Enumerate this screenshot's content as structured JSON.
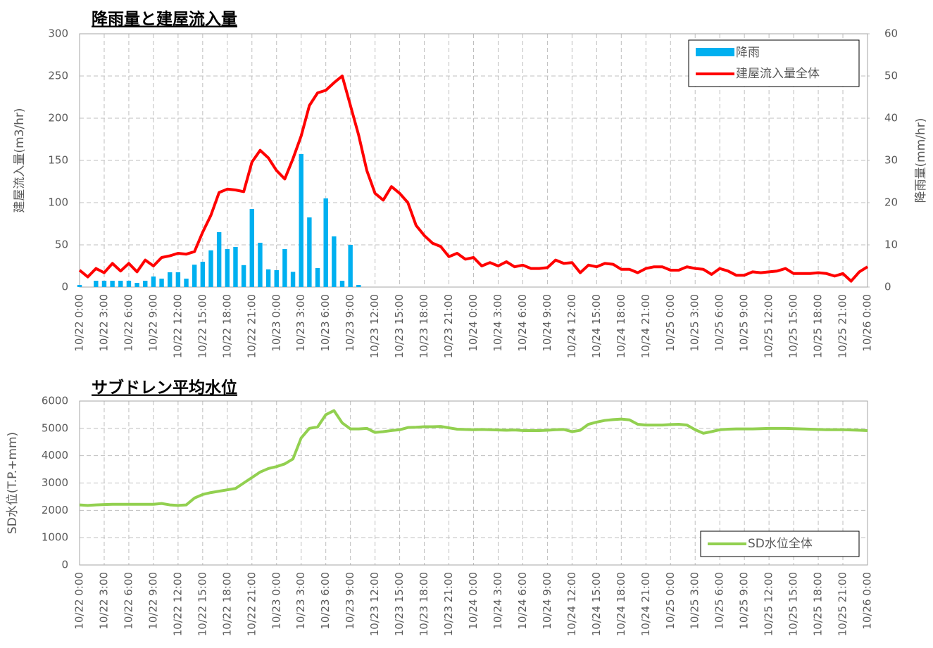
{
  "chart_data": [
    {
      "type": "combo",
      "title": "降雨量と建屋流入量",
      "ylabel": "建屋流入量(m3/hr)",
      "y2label": "降雨量(mm/hr)",
      "categories": [
        "10/22 0:00",
        null,
        null,
        "10/22 3:00",
        null,
        null,
        "10/22 6:00",
        null,
        null,
        "10/22 9:00",
        null,
        null,
        "10/22 12:00",
        null,
        null,
        "10/22 15:00",
        null,
        null,
        "10/22 18:00",
        null,
        null,
        "10/22 21:00",
        null,
        null,
        "10/23 0:00",
        null,
        null,
        "10/23 3:00",
        null,
        null,
        "10/23 6:00",
        null,
        null,
        "10/23 9:00",
        null,
        null,
        "10/23 12:00",
        null,
        null,
        "10/23 15:00",
        null,
        null,
        "10/23 18:00",
        null,
        null,
        "10/23 21:00",
        null,
        null,
        "10/24 0:00",
        null,
        null,
        "10/24 3:00",
        null,
        null,
        "10/24 6:00",
        null,
        null,
        "10/24 9:00",
        null,
        null,
        "10/24 12:00",
        null,
        null,
        "10/24 15:00",
        null,
        null,
        "10/24 18:00",
        null,
        null,
        "10/24 21:00",
        null,
        null,
        "10/25 0:00",
        null,
        null,
        "10/25 3:00",
        null,
        null,
        "10/25 6:00",
        null,
        null,
        "10/25 9:00",
        null,
        null,
        "10/25 12:00",
        null,
        null,
        "10/25 15:00",
        null,
        null,
        "10/25 18:00",
        null,
        null,
        "10/25 21:00",
        null,
        null,
        "10/26 0:00"
      ],
      "series": [
        {
          "name": "降雨",
          "type": "bar",
          "axis": "y2",
          "color": "#00b0f0",
          "values": [
            0.5,
            0,
            1.5,
            1.5,
            1.5,
            1.5,
            1.5,
            1,
            1.5,
            2.5,
            2,
            3.5,
            3.5,
            2,
            5.3,
            6,
            8.7,
            13,
            9,
            9.5,
            5.2,
            18.5,
            10.5,
            4.2,
            4,
            9,
            3.6,
            31.5,
            16.5,
            4.5,
            21,
            12,
            1.5,
            10,
            0.5,
            0,
            0,
            0,
            0,
            0,
            0,
            0,
            0,
            0,
            0,
            0,
            0,
            0,
            0,
            0,
            0,
            0,
            0,
            0,
            0,
            0,
            0,
            0,
            0,
            0,
            0,
            0,
            0,
            0,
            0,
            0,
            0,
            0,
            0,
            0,
            0,
            0,
            0,
            0,
            0,
            0,
            0,
            0,
            0,
            0,
            0,
            0,
            0,
            0,
            0,
            0,
            0,
            0,
            0,
            0,
            0,
            0,
            0,
            0,
            0,
            0,
            0
          ]
        },
        {
          "name": "建屋流入量全体",
          "type": "line",
          "color": "#ff0000",
          "values": [
            20,
            12,
            22,
            17,
            28,
            19,
            28,
            18,
            32,
            25,
            35,
            37,
            40,
            39,
            42,
            65,
            85,
            112,
            116,
            115,
            113,
            148,
            162,
            153,
            138,
            128,
            152,
            179,
            215,
            230,
            233,
            242,
            250,
            215,
            180,
            138,
            111,
            103,
            119,
            111,
            100,
            73,
            61,
            52,
            48,
            36,
            40,
            33,
            35,
            25,
            29,
            25,
            30,
            24,
            26,
            22,
            22,
            23,
            32,
            28,
            29,
            17,
            26,
            24,
            28,
            27,
            21,
            21,
            17,
            22,
            24,
            24,
            20,
            20,
            24,
            22,
            21,
            15,
            22,
            19,
            14,
            14,
            18,
            17,
            18,
            19,
            22,
            16,
            16,
            16,
            17,
            16,
            13,
            16,
            7,
            18,
            24
          ]
        }
      ],
      "ylim": [
        0,
        300
      ],
      "yticks": [
        0,
        50,
        100,
        150,
        200,
        250,
        300
      ],
      "y2lim": [
        0,
        60
      ],
      "y2ticks": [
        0,
        10,
        20,
        30,
        40,
        50,
        60
      ],
      "grid": true,
      "legend": "upper right"
    },
    {
      "type": "line",
      "title": "サブドレン平均水位",
      "ylabel": "SD水位(T.P.+mm)",
      "categories": [
        "10/22 0:00",
        null,
        null,
        "10/22 3:00",
        null,
        null,
        "10/22 6:00",
        null,
        null,
        "10/22 9:00",
        null,
        null,
        "10/22 12:00",
        null,
        null,
        "10/22 15:00",
        null,
        null,
        "10/22 18:00",
        null,
        null,
        "10/22 21:00",
        null,
        null,
        "10/23 0:00",
        null,
        null,
        "10/23 3:00",
        null,
        null,
        "10/23 6:00",
        null,
        null,
        "10/23 9:00",
        null,
        null,
        "10/23 12:00",
        null,
        null,
        "10/23 15:00",
        null,
        null,
        "10/23 18:00",
        null,
        null,
        "10/23 21:00",
        null,
        null,
        "10/24 0:00",
        null,
        null,
        "10/24 3:00",
        null,
        null,
        "10/24 6:00",
        null,
        null,
        "10/24 9:00",
        null,
        null,
        "10/24 12:00",
        null,
        null,
        "10/24 15:00",
        null,
        null,
        "10/24 18:00",
        null,
        null,
        "10/24 21:00",
        null,
        null,
        "10/25 0:00",
        null,
        null,
        "10/25 3:00",
        null,
        null,
        "10/25 6:00",
        null,
        null,
        "10/25 9:00",
        null,
        null,
        "10/25 12:00",
        null,
        null,
        "10/25 15:00",
        null,
        null,
        "10/25 18:00",
        null,
        null,
        "10/25 21:00",
        null,
        null,
        "10/26 0:00"
      ],
      "series": [
        {
          "name": "SD水位全体",
          "type": "line",
          "color": "#92d050",
          "values": [
            2200,
            2180,
            2200,
            2210,
            2220,
            2220,
            2220,
            2220,
            2220,
            2220,
            2250,
            2200,
            2180,
            2200,
            2450,
            2580,
            2650,
            2700,
            2750,
            2800,
            3000,
            3200,
            3400,
            3530,
            3600,
            3700,
            3880,
            4650,
            5000,
            5050,
            5500,
            5650,
            5200,
            4980,
            4980,
            5000,
            4850,
            4880,
            4920,
            4950,
            5030,
            5040,
            5060,
            5060,
            5070,
            5020,
            4970,
            4960,
            4950,
            4960,
            4950,
            4940,
            4930,
            4940,
            4920,
            4920,
            4920,
            4930,
            4950,
            4960,
            4880,
            4930,
            5150,
            5230,
            5290,
            5320,
            5340,
            5310,
            5150,
            5120,
            5120,
            5120,
            5140,
            5150,
            5120,
            4950,
            4820,
            4880,
            4950,
            4970,
            4980,
            4980,
            4980,
            4990,
            5000,
            5000,
            5000,
            4990,
            4980,
            4970,
            4960,
            4950,
            4950,
            4950,
            4940,
            4930,
            4920
          ]
        }
      ],
      "ylim": [
        0,
        6000
      ],
      "yticks": [
        0,
        1000,
        2000,
        3000,
        4000,
        5000,
        6000
      ],
      "grid": true,
      "legend": "lower right"
    }
  ]
}
